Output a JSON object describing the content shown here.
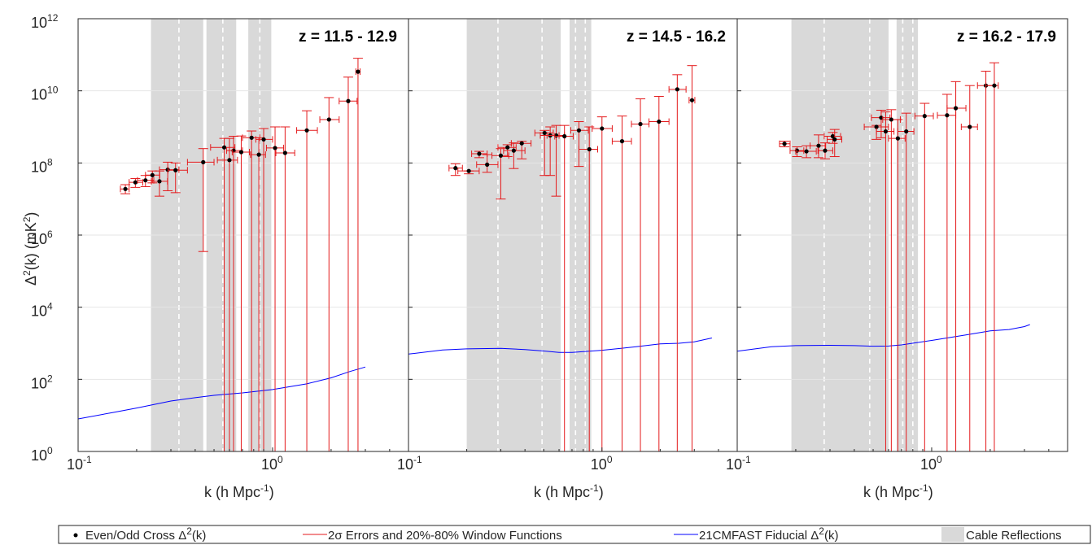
{
  "chart_data": [
    {
      "type": "scatter",
      "title": "z = 11.5 - 12.9",
      "xlabel_main": "k (h Mpc",
      "xlabel_exp": "-1",
      "xlabel_tail": ")",
      "ylabel_main": "Δ",
      "ylabel_exp": "2",
      "ylabel_tail": "(k)  (mK",
      "ylabel_exp2": "2",
      "ylabel_end": ")",
      "xscale": "log",
      "yscale": "log",
      "xlim": [
        0.1,
        5.0
      ],
      "ylim": [
        1,
        1000000000000.0
      ],
      "x_ticks": [
        {
          "base": "10",
          "exp": "-1"
        },
        {
          "base": "10",
          "exp": "0"
        }
      ],
      "y_ticks": [
        {
          "base": "10",
          "exp": "0"
        },
        {
          "base": "10",
          "exp": "2"
        },
        {
          "base": "10",
          "exp": "4"
        },
        {
          "base": "10",
          "exp": "6"
        },
        {
          "base": "10",
          "exp": "8"
        },
        {
          "base": "10",
          "exp": "10"
        },
        {
          "base": "10",
          "exp": "12"
        }
      ],
      "grid": "horizontal",
      "cable_reflections": [
        [
          0.237,
          0.44
        ],
        [
          0.457,
          0.65
        ],
        [
          0.75,
          0.985
        ]
      ],
      "cable_reflection_centers": [
        0.33,
        0.555,
        0.86
      ],
      "points": [
        {
          "k": 0.175,
          "p": 19000000.0,
          "kl": 0.165,
          "kh": 0.183,
          "el": 14000000.0,
          "eh": 25000000.0
        },
        {
          "k": 0.197,
          "p": 29000000.0,
          "kl": 0.183,
          "kh": 0.215,
          "el": 21000000.0,
          "eh": 37000000.0
        },
        {
          "k": 0.222,
          "p": 33000000.0,
          "kl": 0.202,
          "kh": 0.245,
          "el": 22000000.0,
          "eh": 45000000.0
        },
        {
          "k": 0.241,
          "p": 46000000.0,
          "kl": 0.222,
          "kh": 0.263,
          "el": 28000000.0,
          "eh": 60000000.0
        },
        {
          "k": 0.262,
          "p": 31000000.0,
          "kl": 0.238,
          "kh": 0.288,
          "el": 12000000.0,
          "eh": 60000000.0
        },
        {
          "k": 0.289,
          "p": 65000000.0,
          "kl": 0.262,
          "kh": 0.33,
          "el": 17000000.0,
          "eh": 105000000.0
        },
        {
          "k": 0.317,
          "p": 63000000.0,
          "kl": 0.29,
          "kh": 0.365,
          "el": 15000000.0,
          "eh": 100000000.0
        },
        {
          "k": 0.44,
          "p": 105000000.0,
          "kl": 0.365,
          "kh": 0.5,
          "el": 350000.0,
          "eh": 250000000.0
        },
        {
          "k": 0.564,
          "p": 270000000.0,
          "kl": 0.48,
          "kh": 0.64,
          "el": 1,
          "eh": 480000000.0
        },
        {
          "k": 0.6,
          "p": 120000000.0,
          "kl": 0.52,
          "kh": 0.66,
          "el": 1,
          "eh": 480000000.0
        },
        {
          "k": 0.63,
          "p": 220000000.0,
          "kl": 0.58,
          "kh": 0.7,
          "el": 1,
          "eh": 550000000.0
        },
        {
          "k": 0.69,
          "p": 200000000.0,
          "kl": 0.62,
          "kh": 0.76,
          "el": 1,
          "eh": 560000000.0
        },
        {
          "k": 0.78,
          "p": 500000000.0,
          "kl": 0.7,
          "kh": 0.86,
          "el": 1,
          "eh": 770000000.0
        },
        {
          "k": 0.85,
          "p": 170000000.0,
          "kl": 0.77,
          "kh": 0.92,
          "el": 1,
          "eh": 500000000.0
        },
        {
          "k": 0.9,
          "p": 450000000.0,
          "kl": 0.82,
          "kh": 1.0,
          "el": 1,
          "eh": 900000000.0
        },
        {
          "k": 1.03,
          "p": 260000000.0,
          "kl": 0.93,
          "kh": 1.14,
          "el": 1,
          "eh": 1000000000.0
        },
        {
          "k": 1.16,
          "p": 190000000.0,
          "kl": 1.04,
          "kh": 1.3,
          "el": 1,
          "eh": 1000000000.0
        },
        {
          "k": 1.5,
          "p": 800000000.0,
          "kl": 1.33,
          "kh": 1.7,
          "el": 1,
          "eh": 2800000000.0
        },
        {
          "k": 1.95,
          "p": 1600000000.0,
          "kl": 1.75,
          "kh": 2.2,
          "el": 1,
          "eh": 6500000000.0
        },
        {
          "k": 2.45,
          "p": 5200000000.0,
          "kl": 2.2,
          "kh": 2.72,
          "el": 1,
          "eh": 24000000000.0
        },
        {
          "k": 2.75,
          "p": 34000000000.0,
          "kl": 2.68,
          "kh": 2.82,
          "el": 1,
          "eh": 80000000000.0
        }
      ],
      "model_curve": [
        [
          0.1,
          8
        ],
        [
          0.15,
          12
        ],
        [
          0.2,
          16
        ],
        [
          0.3,
          25
        ],
        [
          0.4,
          31
        ],
        [
          0.5,
          36
        ],
        [
          0.7,
          42
        ],
        [
          1.0,
          52
        ],
        [
          1.5,
          75
        ],
        [
          2.0,
          110
        ],
        [
          2.5,
          165
        ],
        [
          3.0,
          220
        ]
      ]
    },
    {
      "type": "scatter",
      "title": "z = 14.5 - 16.2",
      "xlabel_main": "k (h Mpc",
      "xlabel_exp": "-1",
      "xlabel_tail": ")",
      "xscale": "log",
      "yscale": "log",
      "xlim": [
        0.1,
        5.0
      ],
      "ylim": [
        1,
        1000000000000.0
      ],
      "x_ticks": [
        {
          "base": "10",
          "exp": "-1"
        },
        {
          "base": "10",
          "exp": "0"
        }
      ],
      "grid": "horizontal",
      "cable_reflections": [
        [
          0.2,
          0.612
        ],
        [
          0.68,
          0.88
        ]
      ],
      "cable_reflection_centers": [
        0.29,
        0.49,
        0.73,
        0.82
      ],
      "points": [
        {
          "k": 0.175,
          "p": 72000000.0,
          "kl": 0.162,
          "kh": 0.19,
          "el": 45000000.0,
          "eh": 95000000.0
        },
        {
          "k": 0.205,
          "p": 60000000.0,
          "kl": 0.18,
          "kh": 0.232,
          "el": 50000000.0,
          "eh": 60000000.0
        },
        {
          "k": 0.232,
          "p": 180000000.0,
          "kl": 0.212,
          "kh": 0.255,
          "el": 140000000.0,
          "eh": 210000000.0
        },
        {
          "k": 0.255,
          "p": 90000000.0,
          "kl": 0.225,
          "kh": 0.29,
          "el": 55000000.0,
          "eh": 170000000.0
        },
        {
          "k": 0.3,
          "p": 160000000.0,
          "kl": 0.27,
          "kh": 0.33,
          "el": 10000000.0,
          "eh": 250000000.0
        },
        {
          "k": 0.325,
          "p": 270000000.0,
          "kl": 0.29,
          "kh": 0.36,
          "el": 150000000.0,
          "eh": 320000000.0
        },
        {
          "k": 0.35,
          "p": 220000000.0,
          "kl": 0.31,
          "kh": 0.4,
          "el": 70000000.0,
          "eh": 360000000.0
        },
        {
          "k": 0.385,
          "p": 350000000.0,
          "kl": 0.34,
          "kh": 0.43,
          "el": 130000000.0,
          "eh": 400000000.0
        },
        {
          "k": 0.505,
          "p": 680000000.0,
          "kl": 0.45,
          "kh": 0.56,
          "el": 45000000.0,
          "eh": 800000000.0
        },
        {
          "k": 0.54,
          "p": 580000000.0,
          "kl": 0.48,
          "kh": 0.6,
          "el": 45000000.0,
          "eh": 1000000000.0
        },
        {
          "k": 0.58,
          "p": 580000000.0,
          "kl": 0.52,
          "kh": 0.64,
          "el": 12000000.0,
          "eh": 1100000000.0
        },
        {
          "k": 0.64,
          "p": 550000000.0,
          "kl": 0.57,
          "kh": 0.71,
          "el": 1,
          "eh": 1100000000.0
        },
        {
          "k": 0.76,
          "p": 800000000.0,
          "kl": 0.69,
          "kh": 0.85,
          "el": 80000000.0,
          "eh": 1400000000.0
        },
        {
          "k": 0.86,
          "p": 240000000.0,
          "kl": 0.76,
          "kh": 0.95,
          "el": 1,
          "eh": 1000000000.0
        },
        {
          "k": 1.0,
          "p": 900000000.0,
          "kl": 0.89,
          "kh": 1.13,
          "el": 1,
          "eh": 1900000000.0
        },
        {
          "k": 1.27,
          "p": 400000000.0,
          "kl": 1.13,
          "kh": 1.42,
          "el": 1,
          "eh": 2000000000.0
        },
        {
          "k": 1.58,
          "p": 1200000000.0,
          "kl": 1.42,
          "kh": 1.75,
          "el": 1,
          "eh": 6000000000.0
        },
        {
          "k": 1.97,
          "p": 1400000000.0,
          "kl": 1.75,
          "kh": 2.22,
          "el": 1,
          "eh": 7000000000.0
        },
        {
          "k": 2.45,
          "p": 11000000000.0,
          "kl": 2.22,
          "kh": 2.72,
          "el": 1,
          "eh": 28000000000.0
        },
        {
          "k": 2.92,
          "p": 5500000000.0,
          "kl": 2.82,
          "kh": 3.02,
          "el": 1,
          "eh": 50000000000.0
        }
      ],
      "model_curve": [
        [
          0.1,
          500
        ],
        [
          0.15,
          650
        ],
        [
          0.2,
          700
        ],
        [
          0.3,
          720
        ],
        [
          0.4,
          670
        ],
        [
          0.5,
          610
        ],
        [
          0.6,
          560
        ],
        [
          0.7,
          560
        ],
        [
          1.0,
          640
        ],
        [
          1.5,
          800
        ],
        [
          2.0,
          960
        ],
        [
          2.5,
          1000
        ],
        [
          3.0,
          1100
        ],
        [
          3.7,
          1400
        ]
      ]
    },
    {
      "type": "scatter",
      "title": "z = 16.2 - 17.9",
      "xlabel_main": "k (h Mpc",
      "xlabel_exp": "-1",
      "xlabel_tail": ")",
      "xscale": "log",
      "yscale": "log",
      "xlim": [
        0.1,
        5.0
      ],
      "ylim": [
        1,
        1000000000000.0
      ],
      "x_ticks": [
        {
          "base": "10",
          "exp": "-1"
        },
        {
          "base": "10",
          "exp": "0"
        }
      ],
      "grid": "horizontal",
      "cable_reflections": [
        [
          0.19,
          0.6
        ],
        [
          0.66,
          0.85
        ]
      ],
      "cable_reflection_centers": [
        0.28,
        0.48,
        0.71,
        0.8
      ],
      "points": [
        {
          "k": 0.175,
          "p": 340000000.0,
          "kl": 0.165,
          "kh": 0.187,
          "el": 280000000.0,
          "eh": 400000000.0
        },
        {
          "k": 0.203,
          "p": 220000000.0,
          "kl": 0.187,
          "kh": 0.22,
          "el": 150000000.0,
          "eh": 280000000.0
        },
        {
          "k": 0.227,
          "p": 210000000.0,
          "kl": 0.2,
          "kh": 0.255,
          "el": 140000000.0,
          "eh": 300000000.0
        },
        {
          "k": 0.262,
          "p": 300000000.0,
          "kl": 0.237,
          "kh": 0.285,
          "el": 140000000.0,
          "eh": 600000000.0
        },
        {
          "k": 0.283,
          "p": 220000000.0,
          "kl": 0.26,
          "kh": 0.31,
          "el": 130000000.0,
          "eh": 360000000.0
        },
        {
          "k": 0.31,
          "p": 550000000.0,
          "kl": 0.28,
          "kh": 0.34,
          "el": 350000000.0,
          "eh": 700000000.0
        },
        {
          "k": 0.317,
          "p": 450000000.0,
          "kl": 0.29,
          "kh": 0.345,
          "el": 150000000.0,
          "eh": 850000000.0
        },
        {
          "k": 0.52,
          "p": 1000000000.0,
          "kl": 0.45,
          "kh": 0.6,
          "el": 450000000.0,
          "eh": 1100000000.0
        },
        {
          "k": 0.55,
          "p": 1800000000.0,
          "kl": 0.49,
          "kh": 0.61,
          "el": 500000000.0,
          "eh": 2900000000.0
        },
        {
          "k": 0.58,
          "p": 750000000.0,
          "kl": 0.52,
          "kh": 0.64,
          "el": 1,
          "eh": 2600000000.0
        },
        {
          "k": 0.62,
          "p": 1600000000.0,
          "kl": 0.56,
          "kh": 0.69,
          "el": 1,
          "eh": 3000000000.0
        },
        {
          "k": 0.67,
          "p": 480000000.0,
          "kl": 0.6,
          "kh": 0.73,
          "el": 1,
          "eh": 1600000000.0
        },
        {
          "k": 0.74,
          "p": 750000000.0,
          "kl": 0.67,
          "kh": 0.81,
          "el": 1,
          "eh": 2400000000.0
        },
        {
          "k": 0.92,
          "p": 2000000000.0,
          "kl": 0.82,
          "kh": 1.02,
          "el": 1,
          "eh": 4500000000.0
        },
        {
          "k": 1.2,
          "p": 2100000000.0,
          "kl": 1.07,
          "kh": 1.33,
          "el": 1,
          "eh": 8000000000.0
        },
        {
          "k": 1.33,
          "p": 3300000000.0,
          "kl": 1.2,
          "kh": 1.5,
          "el": 1,
          "eh": 18000000000.0
        },
        {
          "k": 1.57,
          "p": 1000000000.0,
          "kl": 1.42,
          "kh": 1.72,
          "el": 1,
          "eh": 14000000000.0
        },
        {
          "k": 1.9,
          "p": 14000000000.0,
          "kl": 1.72,
          "kh": 2.1,
          "el": 1,
          "eh": 35000000000.0
        },
        {
          "k": 2.1,
          "p": 14000000000.0,
          "kl": 1.9,
          "kh": 2.2,
          "el": 1,
          "eh": 60000000000.0
        }
      ],
      "model_curve": [
        [
          0.1,
          600
        ],
        [
          0.15,
          800
        ],
        [
          0.2,
          860
        ],
        [
          0.3,
          880
        ],
        [
          0.4,
          860
        ],
        [
          0.5,
          830
        ],
        [
          0.6,
          840
        ],
        [
          0.7,
          900
        ],
        [
          1.0,
          1200
        ],
        [
          1.5,
          1700
        ],
        [
          2.0,
          2200
        ],
        [
          2.5,
          2400
        ],
        [
          3.0,
          2900
        ],
        [
          3.2,
          3300
        ]
      ]
    }
  ],
  "legend": {
    "items": [
      {
        "label_main": "Even/Odd Cross Δ",
        "label_exp": "2",
        "label_tail": "(k)"
      },
      {
        "label_prefix": "2σ",
        "label_main": " Errors and 20%-80% Window Functions"
      },
      {
        "label_main": "21CMFAST Fiducial Δ",
        "label_exp": "2",
        "label_tail": "(k)"
      },
      {
        "label_main": "Cable Reflections"
      }
    ]
  },
  "colors": {
    "points": "#000000",
    "errors": "#e41a1c",
    "model": "#0000ff",
    "cable": "#d9d9d9",
    "grid": "#e6e6e6",
    "axis": "#262626"
  }
}
